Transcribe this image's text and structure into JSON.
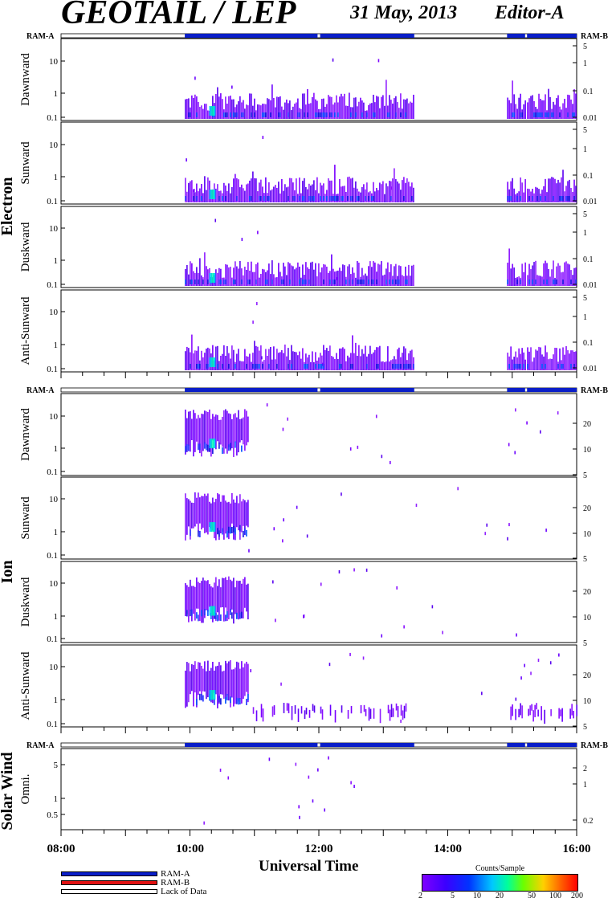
{
  "header": {
    "title": "GEOTAIL / LEP",
    "date": "31 May, 2013",
    "editor": "Editor-A"
  },
  "x_axis": {
    "label": "Universal Time",
    "ticks": [
      "08:00",
      "10:00",
      "12:00",
      "14:00",
      "16:00"
    ]
  },
  "groups": [
    {
      "name": "Electron"
    },
    {
      "name": "Ion"
    },
    {
      "name": "Solar Wind"
    }
  ],
  "status_labels": {
    "left": "RAM-A",
    "right": "RAM-B"
  },
  "legend": {
    "items": [
      {
        "label": "RAM-A",
        "color": "#0a1ec8"
      },
      {
        "label": "RAM-B",
        "color": "#e01010"
      },
      {
        "label": "Lack of Data",
        "color": "#ffffff"
      }
    ]
  },
  "colorbar": {
    "title": "Counts/Sample",
    "ticks": [
      "2",
      "5",
      "10",
      "20",
      "50",
      "100",
      "200"
    ]
  },
  "chart_data": {
    "type": "heatmap",
    "x_range_hours": [
      8,
      16
    ],
    "status_bar": {
      "ram_a_segments_hours": [
        [
          9.92,
          11.98
        ],
        [
          12.02,
          13.48
        ],
        [
          14.92,
          15.2
        ],
        [
          15.23,
          16.0
        ]
      ]
    },
    "panels": [
      {
        "group": "Electron",
        "label": "Dawnward",
        "left_ticks": [
          "10",
          "1",
          "0.1"
        ],
        "right_ticks": [
          "5",
          "1",
          "0.1",
          "0.01"
        ],
        "data_segments_hours": [
          [
            9.92,
            13.48
          ],
          [
            14.92,
            15.2
          ],
          [
            15.23,
            16.0
          ]
        ]
      },
      {
        "group": "Electron",
        "label": "Sunward",
        "left_ticks": [
          "10",
          "1",
          "0.1"
        ],
        "right_ticks": [
          "5",
          "1",
          "0.1",
          "0.01"
        ],
        "data_segments_hours": [
          [
            9.92,
            13.48
          ],
          [
            14.92,
            15.2
          ],
          [
            15.23,
            16.0
          ]
        ]
      },
      {
        "group": "Electron",
        "label": "Duskward",
        "left_ticks": [
          "10",
          "1",
          "0.1"
        ],
        "right_ticks": [
          "5",
          "1",
          "0.1",
          "0.01"
        ],
        "data_segments_hours": [
          [
            9.92,
            13.48
          ],
          [
            14.92,
            15.2
          ],
          [
            15.23,
            16.0
          ]
        ]
      },
      {
        "group": "Electron",
        "label": "Anti-Sunward",
        "left_ticks": [
          "10",
          "1",
          "0.1"
        ],
        "right_ticks": [
          "5",
          "1",
          "0.1",
          "0.01"
        ],
        "data_segments_hours": [
          [
            9.92,
            13.48
          ],
          [
            14.92,
            15.2
          ],
          [
            15.23,
            16.0
          ]
        ]
      },
      {
        "group": "Ion",
        "label": "Dawnward",
        "left_ticks": [
          "10",
          "1",
          "0.1"
        ],
        "right_ticks": [
          "20",
          "10",
          "5"
        ],
        "data_segments_hours": [
          [
            9.92,
            10.9
          ]
        ]
      },
      {
        "group": "Ion",
        "label": "Sunward",
        "left_ticks": [
          "10",
          "1",
          "0.1"
        ],
        "right_ticks": [
          "20",
          "10",
          "5"
        ],
        "data_segments_hours": [
          [
            9.92,
            10.9
          ]
        ]
      },
      {
        "group": "Ion",
        "label": "Duskward",
        "left_ticks": [
          "10",
          "1",
          "0.1"
        ],
        "right_ticks": [
          "20",
          "10",
          "5"
        ],
        "data_segments_hours": [
          [
            9.92,
            10.9
          ]
        ]
      },
      {
        "group": "Ion",
        "label": "Anti-Sunward",
        "left_ticks": [
          "10",
          "1",
          "0.1"
        ],
        "right_ticks": [
          "20",
          "10",
          "5"
        ],
        "data_segments_hours": [
          [
            9.92,
            10.9
          ],
          [
            10.9,
            13.45
          ],
          [
            14.92,
            16.0
          ]
        ]
      },
      {
        "group": "Solar Wind",
        "label": "Omni.",
        "left_ticks": [
          "5",
          "1",
          "0.5"
        ],
        "right_ticks": [
          "2",
          "1",
          "0.2"
        ],
        "data_segments_hours": []
      }
    ]
  }
}
